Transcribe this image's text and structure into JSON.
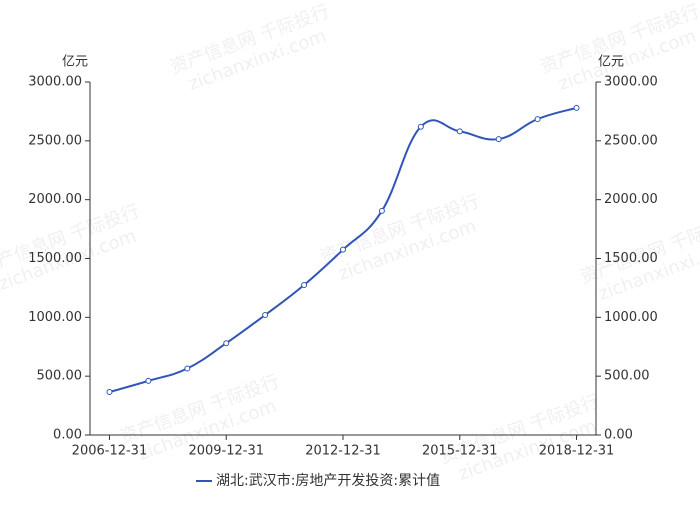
{
  "chart_data": {
    "type": "line",
    "y_unit": "亿元",
    "y2_unit": "亿元",
    "x": [
      "2006-12-31",
      null,
      null,
      "2009-12-31",
      null,
      null,
      "2012-12-31",
      null,
      null,
      "2015-12-31",
      null,
      null,
      "2018-12-31"
    ],
    "series": [
      {
        "name": "湖北:武汉市:房地产开发投资:累计值",
        "color": "#2f55b8",
        "values": [
          365,
          460,
          565,
          780,
          1020,
          1275,
          1575,
          1905,
          2620,
          2580,
          2515,
          2685,
          2780
        ]
      }
    ],
    "ylim": [
      0,
      3000
    ],
    "yticks": [
      {
        "value": 0,
        "label": "0.00"
      },
      {
        "value": 500,
        "label": "500.00"
      },
      {
        "value": 1000,
        "label": "1000.00"
      },
      {
        "value": 1500,
        "label": "1500.00"
      },
      {
        "value": 2000,
        "label": "2000.00"
      },
      {
        "value": 2500,
        "label": "2500.00"
      },
      {
        "value": 3000,
        "label": "3000.00"
      }
    ],
    "y2lim": [
      0,
      3000
    ],
    "y2ticks": [
      {
        "value": 0,
        "label": "0.00"
      },
      {
        "value": 500,
        "label": "500.00"
      },
      {
        "value": 1000,
        "label": "1000.00"
      },
      {
        "value": 1500,
        "label": "1500.00"
      },
      {
        "value": 2000,
        "label": "2000.00"
      },
      {
        "value": 2500,
        "label": "2500.00"
      },
      {
        "value": 3000,
        "label": "3000.00"
      }
    ],
    "legend": "bottom",
    "watermarks": [
      "资产信息网 千际投行",
      "zichanxinxi.com"
    ]
  }
}
